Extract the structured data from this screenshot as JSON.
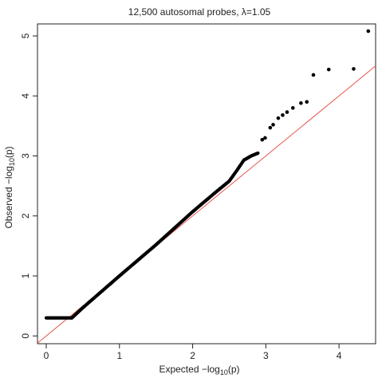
{
  "chart_data": {
    "type": "scatter",
    "title": "12,500 autosomal probes, λ=1.05",
    "xlabel": {
      "prefix": "Expected  −log",
      "sub": "10",
      "suffix": "(p)"
    },
    "ylabel": {
      "prefix": "Observed  −log",
      "sub": "10",
      "suffix": "(p)"
    },
    "xlim": [
      -0.12,
      4.5
    ],
    "ylim": [
      -0.13,
      5.2
    ],
    "xticks": [
      0,
      1,
      2,
      3,
      4
    ],
    "yticks": [
      0,
      1,
      2,
      3,
      4,
      5
    ],
    "grid": false,
    "reference_line": {
      "slope": 1.0,
      "intercept": 0.0,
      "color": "#e8534a"
    },
    "point_color": "#000000",
    "floor_segment": {
      "x_start": 0.0,
      "x_end": 0.35,
      "y": 0.3
    },
    "main_trend": [
      [
        0.35,
        0.3
      ],
      [
        0.5,
        0.47
      ],
      [
        1.0,
        1.0
      ],
      [
        1.5,
        1.52
      ],
      [
        2.0,
        2.07
      ],
      [
        2.3,
        2.38
      ],
      [
        2.5,
        2.58
      ],
      [
        2.6,
        2.75
      ],
      [
        2.7,
        2.93
      ],
      [
        2.8,
        3.0
      ],
      [
        2.9,
        3.05
      ]
    ],
    "tail_points": [
      [
        2.95,
        3.27
      ],
      [
        2.99,
        3.3
      ],
      [
        3.06,
        3.47
      ],
      [
        3.1,
        3.52
      ],
      [
        3.17,
        3.63
      ],
      [
        3.23,
        3.68
      ],
      [
        3.29,
        3.73
      ],
      [
        3.37,
        3.8
      ],
      [
        3.48,
        3.88
      ],
      [
        3.56,
        3.9
      ],
      [
        3.65,
        4.35
      ],
      [
        3.86,
        4.44
      ],
      [
        4.2,
        4.45
      ],
      [
        4.4,
        5.08
      ]
    ]
  }
}
